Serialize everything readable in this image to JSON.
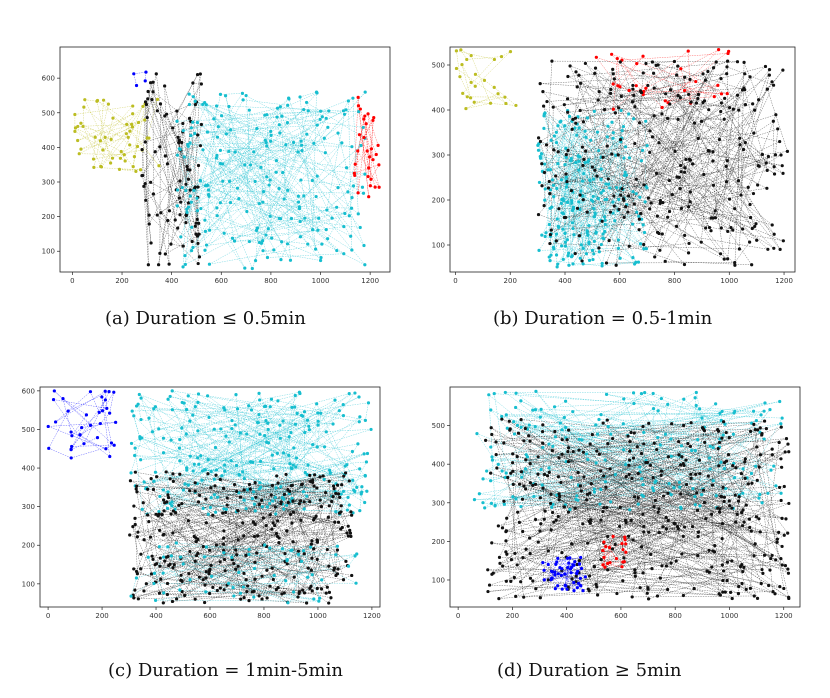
{
  "colors": {
    "black": "#111111",
    "cyan": "#17becf",
    "yellow": "#bcbd22",
    "red": "#ff0000",
    "blue": "#0000ff"
  },
  "captions": [
    "(a) Duration ≤ 0.5min",
    "(b) Duration = 0.5-1min",
    "(c) Duration = 1min-5min",
    "(d) Duration ≥ 5min"
  ],
  "chart_data": [
    {
      "type": "scatter",
      "title": "",
      "xlabel": "",
      "ylabel": "",
      "xlim": [
        -50,
        1280
      ],
      "ylim": [
        40,
        690
      ],
      "xticks": [
        0,
        200,
        400,
        600,
        800,
        1000,
        1200
      ],
      "yticks": [
        100,
        200,
        300,
        400,
        500,
        600
      ],
      "caption": "(a) Duration ≤ 0.5min",
      "clusters": [
        {
          "color": "yellow",
          "xrange": [
            0,
            350
          ],
          "yrange": [
            330,
            540
          ],
          "count": 55
        },
        {
          "color": "blue",
          "xrange": [
            150,
            360
          ],
          "yrange": [
            550,
            660
          ],
          "count": 4
        },
        {
          "color": "black",
          "xrange": [
            280,
            520
          ],
          "yrange": [
            60,
            620
          ],
          "count": 95
        },
        {
          "color": "cyan",
          "xrange": [
            420,
            1180
          ],
          "yrange": [
            50,
            560
          ],
          "count": 230
        },
        {
          "color": "red",
          "xrange": [
            1130,
            1240
          ],
          "yrange": [
            240,
            550
          ],
          "count": 30
        }
      ]
    },
    {
      "type": "scatter",
      "title": "",
      "xlabel": "",
      "ylabel": "",
      "xlim": [
        -20,
        1240
      ],
      "ylim": [
        40,
        540
      ],
      "xticks": [
        0,
        200,
        400,
        600,
        800,
        1000,
        1200
      ],
      "yticks": [
        100,
        200,
        300,
        400,
        500
      ],
      "caption": "(b) Duration = 0.5-1min",
      "clusters": [
        {
          "color": "yellow",
          "xrange": [
            0,
            240
          ],
          "yrange": [
            400,
            535
          ],
          "count": 25
        },
        {
          "color": "red",
          "xrange": [
            420,
            1060
          ],
          "yrange": [
            400,
            535
          ],
          "count": 30
        },
        {
          "color": "cyan",
          "xrange": [
            300,
            700
          ],
          "yrange": [
            50,
            400
          ],
          "count": 230
        },
        {
          "color": "black",
          "xrange": [
            300,
            1220
          ],
          "yrange": [
            50,
            510
          ],
          "count": 300
        }
      ]
    },
    {
      "type": "scatter",
      "title": "",
      "xlabel": "",
      "ylabel": "",
      "xlim": [
        -30,
        1230
      ],
      "ylim": [
        40,
        610
      ],
      "xticks": [
        0,
        200,
        400,
        600,
        800,
        1000,
        1200
      ],
      "yticks": [
        100,
        200,
        300,
        400,
        500,
        600
      ],
      "caption": "(c) Duration = 1min-5min",
      "clusters": [
        {
          "color": "blue",
          "xrange": [
            0,
            270
          ],
          "yrange": [
            420,
            600
          ],
          "count": 35
        },
        {
          "color": "cyan",
          "xrange": [
            300,
            1200
          ],
          "yrange": [
            280,
            600
          ],
          "count": 260
        },
        {
          "color": "black",
          "xrange": [
            300,
            1130
          ],
          "yrange": [
            50,
            390
          ],
          "count": 320
        },
        {
          "color": "cyan",
          "xrange": [
            300,
            1150
          ],
          "yrange": [
            50,
            210
          ],
          "count": 60
        }
      ]
    },
    {
      "type": "scatter",
      "title": "",
      "xlabel": "",
      "ylabel": "",
      "xlim": [
        -30,
        1260
      ],
      "ylim": [
        30,
        600
      ],
      "xticks": [
        0,
        200,
        400,
        600,
        800,
        1000,
        1200
      ],
      "yticks": [
        100,
        200,
        300,
        400,
        500
      ],
      "caption": "(d) Duration ≥ 5min",
      "clusters": [
        {
          "color": "cyan",
          "xrange": [
            60,
            1200
          ],
          "yrange": [
            280,
            590
          ],
          "count": 210
        },
        {
          "color": "black",
          "xrange": [
            100,
            1220
          ],
          "yrange": [
            50,
            520
          ],
          "count": 430
        },
        {
          "color": "blue",
          "xrange": [
            310,
            470
          ],
          "yrange": [
            70,
            160
          ],
          "count": 50
        },
        {
          "color": "red",
          "xrange": [
            530,
            620
          ],
          "yrange": [
            130,
            220
          ],
          "count": 20
        }
      ]
    }
  ]
}
